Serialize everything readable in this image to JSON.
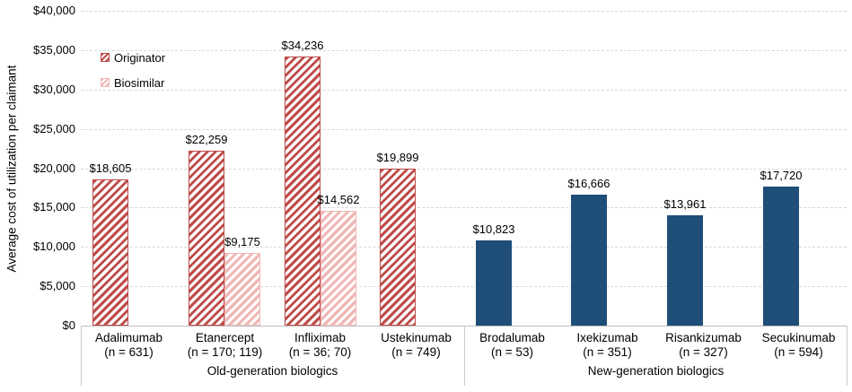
{
  "chart_data": {
    "type": "bar",
    "ylabel": "Average cost of utilization per claimant",
    "ylim": [
      0,
      40000
    ],
    "ytick_step": 5000,
    "ytick_labels": [
      "$0",
      "$5,000",
      "$10,000",
      "$15,000",
      "$20,000",
      "$25,000",
      "$30,000",
      "$35,000",
      "$40,000"
    ],
    "grid": true,
    "legend_position": "upper-left-inside",
    "legend": [
      {
        "label": "Originator",
        "series": "originator"
      },
      {
        "label": "Biosimilar",
        "series": "biosimilar"
      }
    ],
    "colors": {
      "originator": "#BE4B48",
      "biosimilar": "#EFB8B6",
      "new_generation": "#1F4E79",
      "gridline": "#D9D9D9",
      "axis_line": "#BFBFBF",
      "text": "#000000"
    },
    "groups": [
      {
        "label": "Old-generation biologics",
        "categories": [
          {
            "name": "Adalimumab",
            "n": "(n = 631)",
            "bars": [
              {
                "series": "originator",
                "value": 18605,
                "label": "$18,605"
              }
            ]
          },
          {
            "name": "Etanercept",
            "n": "(n = 170; 119)",
            "bars": [
              {
                "series": "originator",
                "value": 22259,
                "label": "$22,259"
              },
              {
                "series": "biosimilar",
                "value": 9175,
                "label": "$9,175"
              }
            ]
          },
          {
            "name": "Infliximab",
            "n": "(n = 36; 70)",
            "bars": [
              {
                "series": "originator",
                "value": 34236,
                "label": "$34,236"
              },
              {
                "series": "biosimilar",
                "value": 14562,
                "label": "$14,562"
              }
            ]
          },
          {
            "name": "Ustekinumab",
            "n": "(n = 749)",
            "bars": [
              {
                "series": "originator",
                "value": 19899,
                "label": "$19,899"
              }
            ]
          }
        ]
      },
      {
        "label": "New-generation biologics",
        "categories": [
          {
            "name": "Brodalumab",
            "n": "(n = 53)",
            "bars": [
              {
                "series": "new_generation",
                "value": 10823,
                "label": "$10,823"
              }
            ]
          },
          {
            "name": "Ixekizumab",
            "n": "(n = 351)",
            "bars": [
              {
                "series": "new_generation",
                "value": 16666,
                "label": "$16,666"
              }
            ]
          },
          {
            "name": "Risankizumab",
            "n": "(n = 327)",
            "bars": [
              {
                "series": "new_generation",
                "value": 13961,
                "label": "$13,961"
              }
            ]
          },
          {
            "name": "Secukinumab",
            "n": "(n = 594)",
            "bars": [
              {
                "series": "new_generation",
                "value": 17720,
                "label": "$17,720"
              }
            ]
          }
        ]
      }
    ]
  }
}
